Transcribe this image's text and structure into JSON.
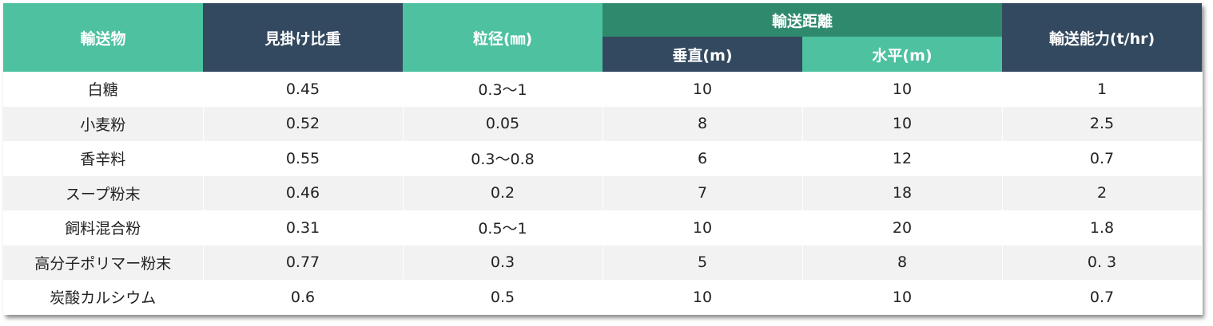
{
  "header": {
    "item": "輸送物",
    "bulk_density": "見掛け比重",
    "particle_size": "粒径(㎜)",
    "distance": "輸送距離",
    "vertical": "垂直(m)",
    "horizontal": "水平(m)",
    "capacity": "輸送能力(t/hr)"
  },
  "rows": [
    {
      "item": "白糖",
      "bulk_density": "0.45",
      "particle_size": "0.3～1",
      "vertical": "10",
      "horizontal": "10",
      "capacity": "1"
    },
    {
      "item": "小麦粉",
      "bulk_density": "0.52",
      "particle_size": "0.05",
      "vertical": "8",
      "horizontal": "10",
      "capacity": "2.5"
    },
    {
      "item": "香辛料",
      "bulk_density": "0.55",
      "particle_size": "0.3～0.8",
      "vertical": "6",
      "horizontal": "12",
      "capacity": "0.7"
    },
    {
      "item": "スープ粉末",
      "bulk_density": "0.46",
      "particle_size": "0.2",
      "vertical": "7",
      "horizontal": "18",
      "capacity": "2"
    },
    {
      "item": "飼料混合粉",
      "bulk_density": "0.31",
      "particle_size": "0.5～1",
      "vertical": "10",
      "horizontal": "20",
      "capacity": "1.8"
    },
    {
      "item": "高分子ポリマー粉末",
      "bulk_density": "0.77",
      "particle_size": "0.3",
      "vertical": "5",
      "horizontal": "8",
      "capacity": "0. 3"
    },
    {
      "item": "炭酸カルシウム",
      "bulk_density": "0.6",
      "particle_size": "0.5",
      "vertical": "10",
      "horizontal": "10",
      "capacity": "0.7"
    }
  ],
  "colors": {
    "header_green": "#4dc1a0",
    "header_navy": "#33495f",
    "header_darkgreen": "#2f8a6d",
    "row_alt": "#f2f2f2"
  }
}
